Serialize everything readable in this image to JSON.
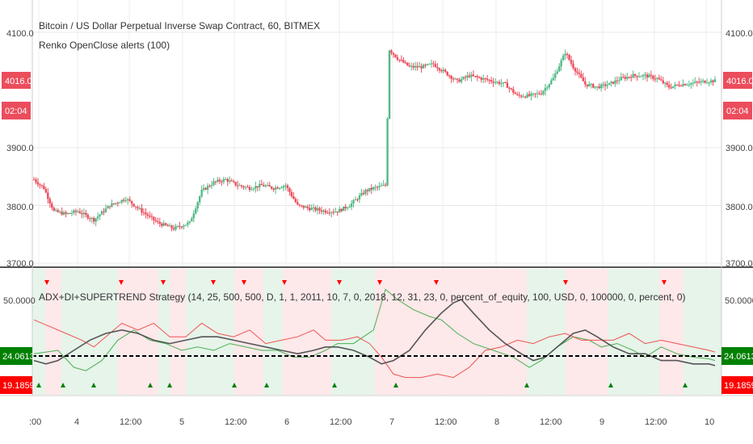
{
  "header": {
    "title": "Bitcoin / US Dollar Perpetual Inverse Swap Contract, 60, BITMEX",
    "indicator": "Renko OpenClose alerts (100)",
    "strategy": "ADX+DI+SUPERTREND Strategy (14, 25, 500, 500, D, 1, 1, 2011, 10, 7, 0, 2018, 12, 31, 23, 0, percent_of_equity, 100, USD, 0, 100000, 0, percent, 0)"
  },
  "price_axis": {
    "ticks": [
      "4100.0",
      "3900.0",
      "3800.0",
      "3700.0"
    ],
    "tick_values": [
      4100,
      3900,
      3800,
      3700
    ],
    "badges": {
      "price": "4016.0",
      "countdown": "02:04"
    }
  },
  "indicator_axis": {
    "ticks": [
      "50.0000"
    ],
    "badges": {
      "green": "24.0613",
      "red": "19.1859"
    }
  },
  "x_axis": {
    "labels": [
      ":00",
      "4",
      "12:00",
      "5",
      "12:00",
      "6",
      "12:00",
      "7",
      "12:00",
      "8",
      "12:00",
      "9",
      "12:00",
      "10"
    ]
  },
  "colors": {
    "up": "#53b987",
    "down": "#eb4d5c",
    "badge_red": "#eb4d5c",
    "badge_green": "#008000",
    "badge_bright_red": "#ff0000",
    "di_plus": "#4caf50",
    "di_minus": "#ef5350",
    "adx": "#555555"
  },
  "chart_data": [
    {
      "type": "candlestick",
      "title": "Bitcoin / US Dollar Perpetual Inverse Swap Contract, 60, BITMEX",
      "ylim": [
        3700,
        4140
      ],
      "anchor_series": [
        {
          "t": 0,
          "v": 3845
        },
        {
          "t": 5,
          "v": 3830
        },
        {
          "t": 10,
          "v": 3790
        },
        {
          "t": 16,
          "v": 3785
        },
        {
          "t": 22,
          "v": 3790
        },
        {
          "t": 30,
          "v": 3775
        },
        {
          "t": 38,
          "v": 3800
        },
        {
          "t": 46,
          "v": 3812
        },
        {
          "t": 54,
          "v": 3790
        },
        {
          "t": 62,
          "v": 3770
        },
        {
          "t": 70,
          "v": 3760
        },
        {
          "t": 78,
          "v": 3770
        },
        {
          "t": 84,
          "v": 3825
        },
        {
          "t": 90,
          "v": 3840
        },
        {
          "t": 96,
          "v": 3845
        },
        {
          "t": 102,
          "v": 3835
        },
        {
          "t": 108,
          "v": 3830
        },
        {
          "t": 114,
          "v": 3835
        },
        {
          "t": 120,
          "v": 3830
        },
        {
          "t": 126,
          "v": 3835
        },
        {
          "t": 132,
          "v": 3800
        },
        {
          "t": 138,
          "v": 3795
        },
        {
          "t": 146,
          "v": 3790
        },
        {
          "t": 152,
          "v": 3790
        },
        {
          "t": 158,
          "v": 3800
        },
        {
          "t": 166,
          "v": 3825
        },
        {
          "t": 170,
          "v": 3830
        },
        {
          "t": 176,
          "v": 3835
        },
        {
          "t": 178,
          "v": 4070
        },
        {
          "t": 182,
          "v": 4055
        },
        {
          "t": 188,
          "v": 4040
        },
        {
          "t": 194,
          "v": 4040
        },
        {
          "t": 200,
          "v": 4045
        },
        {
          "t": 206,
          "v": 4030
        },
        {
          "t": 212,
          "v": 4015
        },
        {
          "t": 218,
          "v": 4025
        },
        {
          "t": 224,
          "v": 4020
        },
        {
          "t": 230,
          "v": 4015
        },
        {
          "t": 236,
          "v": 4010
        },
        {
          "t": 242,
          "v": 3990
        },
        {
          "t": 248,
          "v": 3990
        },
        {
          "t": 254,
          "v": 3995
        },
        {
          "t": 260,
          "v": 4020
        },
        {
          "t": 266,
          "v": 4065
        },
        {
          "t": 270,
          "v": 4040
        },
        {
          "t": 276,
          "v": 4010
        },
        {
          "t": 282,
          "v": 4005
        },
        {
          "t": 288,
          "v": 4010
        },
        {
          "t": 294,
          "v": 4020
        },
        {
          "t": 300,
          "v": 4025
        },
        {
          "t": 306,
          "v": 4025
        },
        {
          "t": 312,
          "v": 4020
        },
        {
          "t": 318,
          "v": 4005
        },
        {
          "t": 324,
          "v": 4010
        },
        {
          "t": 330,
          "v": 4012
        },
        {
          "t": 336,
          "v": 4015
        },
        {
          "t": 341,
          "v": 4016
        }
      ]
    },
    {
      "type": "line",
      "title": "ADX+DI+SUPERTREND Strategy",
      "ylim": [
        0,
        60
      ],
      "reference_line": 24.06,
      "series": [
        {
          "values_at_t": [
            [
              0,
              18
            ],
            [
              12,
              20
            ],
            [
              20,
              10
            ],
            [
              26,
              8
            ],
            [
              34,
              14
            ],
            [
              42,
              26
            ],
            [
              50,
              32
            ],
            [
              58,
              26
            ],
            [
              66,
              24
            ],
            [
              74,
              20
            ],
            [
              82,
              22
            ],
            [
              90,
              20
            ],
            [
              98,
              24
            ],
            [
              106,
              22
            ],
            [
              114,
              20
            ],
            [
              122,
              20
            ],
            [
              130,
              16
            ],
            [
              138,
              16
            ],
            [
              146,
              20
            ],
            [
              152,
              24
            ],
            [
              160,
              24
            ],
            [
              170,
              32
            ],
            [
              176,
              56
            ],
            [
              182,
              50
            ],
            [
              190,
              44
            ],
            [
              198,
              40
            ],
            [
              204,
              38
            ],
            [
              212,
              30
            ],
            [
              220,
              24
            ],
            [
              230,
              20
            ],
            [
              240,
              16
            ],
            [
              248,
              10
            ],
            [
              254,
              14
            ],
            [
              262,
              22
            ],
            [
              270,
              28
            ],
            [
              278,
              26
            ],
            [
              284,
              22
            ],
            [
              292,
              24
            ],
            [
              300,
              20
            ],
            [
              306,
              16
            ],
            [
              314,
              22
            ],
            [
              322,
              18
            ],
            [
              330,
              16
            ],
            [
              338,
              15
            ],
            [
              341,
              14
            ]
          ]
        },
        {
          "values_at_t": [
            [
              0,
              38
            ],
            [
              8,
              34
            ],
            [
              16,
              30
            ],
            [
              24,
              26
            ],
            [
              30,
              22
            ],
            [
              38,
              30
            ],
            [
              44,
              36
            ],
            [
              52,
              32
            ],
            [
              60,
              36
            ],
            [
              68,
              28
            ],
            [
              76,
              28
            ],
            [
              84,
              36
            ],
            [
              92,
              30
            ],
            [
              100,
              28
            ],
            [
              108,
              32
            ],
            [
              116,
              24
            ],
            [
              124,
              26
            ],
            [
              132,
              28
            ],
            [
              140,
              32
            ],
            [
              146,
              26
            ],
            [
              154,
              26
            ],
            [
              162,
              28
            ],
            [
              168,
              24
            ],
            [
              174,
              16
            ],
            [
              180,
              6
            ],
            [
              186,
              4
            ],
            [
              194,
              4
            ],
            [
              202,
              6
            ],
            [
              210,
              4
            ],
            [
              218,
              10
            ],
            [
              226,
              20
            ],
            [
              234,
              22
            ],
            [
              242,
              26
            ],
            [
              250,
              24
            ],
            [
              258,
              28
            ],
            [
              266,
              30
            ],
            [
              274,
              26
            ],
            [
              282,
              26
            ],
            [
              290,
              26
            ],
            [
              298,
              30
            ],
            [
              306,
              24
            ],
            [
              314,
              26
            ],
            [
              322,
              24
            ],
            [
              330,
              22
            ],
            [
              338,
              20
            ],
            [
              341,
              19
            ]
          ]
        },
        {
          "values_at_t": [
            [
              0,
              14
            ],
            [
              6,
              12
            ],
            [
              12,
              14
            ],
            [
              20,
              20
            ],
            [
              28,
              26
            ],
            [
              36,
              30
            ],
            [
              44,
              32
            ],
            [
              52,
              30
            ],
            [
              60,
              26
            ],
            [
              68,
              24
            ],
            [
              76,
              26
            ],
            [
              84,
              28
            ],
            [
              92,
              28
            ],
            [
              100,
              26
            ],
            [
              108,
              24
            ],
            [
              116,
              22
            ],
            [
              124,
              20
            ],
            [
              132,
              18
            ],
            [
              140,
              20
            ],
            [
              146,
              22
            ],
            [
              152,
              22
            ],
            [
              160,
              20
            ],
            [
              168,
              16
            ],
            [
              174,
              12
            ],
            [
              180,
              14
            ],
            [
              188,
              20
            ],
            [
              196,
              32
            ],
            [
              204,
              42
            ],
            [
              210,
              48
            ],
            [
              214,
              50
            ],
            [
              220,
              42
            ],
            [
              228,
              32
            ],
            [
              236,
              24
            ],
            [
              244,
              18
            ],
            [
              250,
              14
            ],
            [
              256,
              16
            ],
            [
              264,
              24
            ],
            [
              270,
              30
            ],
            [
              276,
              32
            ],
            [
              282,
              28
            ],
            [
              290,
              22
            ],
            [
              298,
              18
            ],
            [
              306,
              18
            ],
            [
              314,
              14
            ],
            [
              322,
              14
            ],
            [
              330,
              12
            ],
            [
              338,
              12
            ],
            [
              341,
              11
            ]
          ]
        }
      ]
    }
  ]
}
